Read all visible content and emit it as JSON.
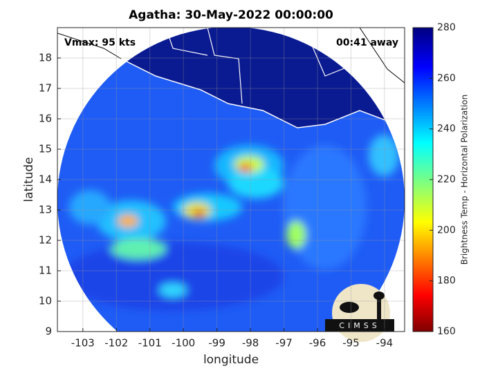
{
  "chart_data": {
    "type": "heatmap",
    "title": "Agatha: 30-May-2022 00:00:00",
    "xlabel": "longitude",
    "ylabel": "latitude",
    "xlim": [
      -103.76,
      -93.4
    ],
    "ylim": [
      9,
      19
    ],
    "xticks": [
      -103,
      -102,
      -101,
      -100,
      -99,
      -98,
      -97,
      -96,
      -95,
      -94
    ],
    "yticks": [
      9,
      10,
      11,
      12,
      13,
      14,
      15,
      16,
      17,
      18
    ],
    "grid": true,
    "annotations": [
      "Vmax: 95 kts",
      "00:41 away"
    ],
    "colorbar": {
      "label": "Brightness Temp - Horizontal Polarization",
      "lim": [
        160,
        280
      ],
      "ticks": [
        160,
        180,
        200,
        220,
        240,
        260,
        280
      ]
    },
    "logo": "CIMSS"
  }
}
